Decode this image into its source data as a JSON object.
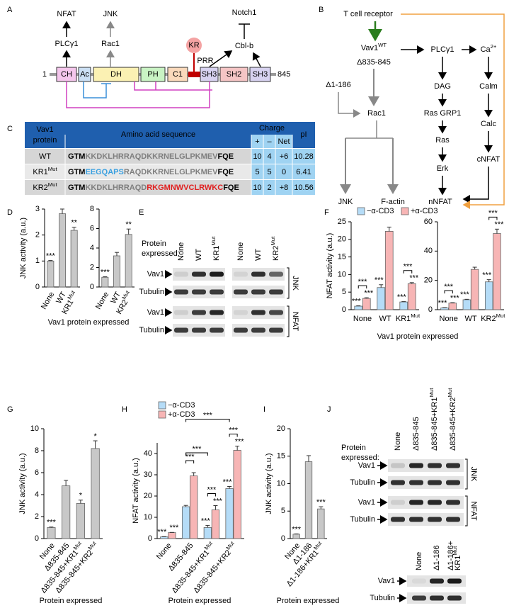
{
  "panel_labels": [
    "A",
    "B",
    "C",
    "D",
    "E",
    "F",
    "G",
    "H",
    "I",
    "J"
  ],
  "panel_a": {
    "nfat": "NFAT",
    "plc": "PLCγ1",
    "jnk": "JNK",
    "rac1": "Rac1",
    "notch1": "Notch1",
    "cblb": "Cbl-b",
    "kr": "KR",
    "prr": "PRR",
    "start": 1,
    "end": 845,
    "domains": [
      "CH",
      "Ac",
      "DH",
      "PH",
      "C1",
      "SH3",
      "SH2",
      "SH3"
    ]
  },
  "panel_b": {
    "tcr": "T cell receptor",
    "vav1": {
      "text": "Vav1",
      "sup": "WT"
    },
    "d835": "Δ835-845",
    "d1": "Δ1-186",
    "rac1": "Rac1",
    "plc": "PLCγ1",
    "ca": {
      "text": "Ca",
      "sup": "2+"
    },
    "dag": "DAG",
    "calm": "Calm",
    "rasgrp": "Ras GRP1",
    "calc": "Calc",
    "ras": "Ras",
    "cnfat": "cNFAT",
    "erk": "Erk",
    "nnfat": "nNFAT",
    "jnk": "JNK",
    "factin": "F-actin"
  },
  "table": {
    "header": {
      "protein": [
        "Vav1",
        "protein"
      ],
      "sequence": "Amino acid sequence",
      "charge": "Charge",
      "plus": "+",
      "minus": "–",
      "net": "Net",
      "pi": "pI"
    },
    "rows": [
      {
        "protein": "WT",
        "sequence": [
          {
            "text": "GTM",
            "color": "#000000"
          },
          {
            "text": "KKDKLHRRAQDKKRNELGLPKMEV",
            "color": "#7f7f7f"
          },
          {
            "text": "FQE",
            "color": "#000000"
          }
        ],
        "plus": 10,
        "minus": 4,
        "net": "+6",
        "pi": 10.28
      },
      {
        "protein": {
          "text": "KR1",
          "sup": "Mut"
        },
        "sequence": [
          {
            "text": "GTM",
            "color": "#000000"
          },
          {
            "text": "EEGQAPS",
            "color": "#3aa0e0"
          },
          {
            "text": "RAQDKKRNELGLPKMEV",
            "color": "#7f7f7f"
          },
          {
            "text": "FQE",
            "color": "#000000"
          }
        ],
        "plus": 5,
        "minus": 5,
        "net": 0,
        "pi": 6.41
      },
      {
        "protein": {
          "text": "KR2",
          "sup": "Mut"
        },
        "sequence": [
          {
            "text": "GTM",
            "color": "#000000"
          },
          {
            "text": "KKDKLHRRAQD",
            "color": "#7f7f7f"
          },
          {
            "text": "RKGMNWVCLRWKC",
            "color": "#e02020"
          },
          {
            "text": "FQE",
            "color": "#000000"
          }
        ],
        "plus": 10,
        "minus": 2,
        "net": "+8",
        "pi": 10.56
      }
    ]
  },
  "blots": {
    "e": {
      "prompt": [
        "Protein",
        "expressed:"
      ],
      "lanes": [
        "None",
        "WT",
        {
          "text": "KR1",
          "sup": "Mut"
        },
        "None",
        "WT",
        {
          "text": "KR2",
          "sup": "Mut"
        }
      ],
      "rows": [
        "Vav1",
        "Tubulin",
        "Vav1",
        "Tubulin"
      ],
      "groups": [
        "JNK",
        "NFAT"
      ]
    },
    "j": {
      "prompt": [
        "Protein",
        "expressed:"
      ],
      "lanes": [
        "None",
        "Δ835-845",
        {
          "text": "Δ835-845+KR1",
          "sup": "Mut"
        },
        {
          "text": "Δ835-845+KR2",
          "sup": "Mut"
        }
      ],
      "rows": [
        "Vav1",
        "Tubulin",
        "Vav1",
        "Tubulin"
      ],
      "groups": [
        "JNK",
        "NFAT"
      ],
      "lanes2": [
        "None",
        "Δ1-186",
        [
          "Δ1-186+",
          {
            "text": "KR1",
            "sup": "Mut"
          }
        ]
      ],
      "rows2": [
        "Vav1",
        "Tubulin"
      ]
    }
  },
  "chart_data": [
    {
      "type": "bar",
      "y_label": "JNK activity (a.u.)",
      "x_label": "Vav1 protein expressed",
      "categories": [
        "None",
        "WT",
        {
          "text": "KR1",
          "sup": "Mut"
        }
      ],
      "values": [
        1.0,
        2.82,
        2.18
      ],
      "errors": [
        0.02,
        0.18,
        0.12
      ],
      "annotations": [
        "***",
        null,
        "**"
      ],
      "color": "#c8c8c8",
      "ylim": [
        0,
        3
      ],
      "yticks": [
        0,
        1,
        2,
        3
      ]
    },
    {
      "type": "bar",
      "categories": [
        "None",
        "WT",
        {
          "text": "KR2",
          "sup": "Mut"
        }
      ],
      "values": [
        1.0,
        3.2,
        5.4
      ],
      "errors": [
        0.05,
        0.35,
        0.55
      ],
      "annotations": [
        "***",
        null,
        "**"
      ],
      "color": "#c8c8c8",
      "ylim": [
        0,
        8
      ],
      "yticks": [
        0,
        2,
        4,
        6,
        8
      ]
    },
    {
      "type": "grouped_bar",
      "y_label": "NFAT activity (a.u.)",
      "x_label": "Vav1 protein expressed",
      "categories": [
        "None",
        "WT",
        {
          "text": "KR1",
          "sup": "Mut"
        }
      ],
      "series": [
        {
          "name": "−α-CD3",
          "color": "#b5dcf7",
          "annotation_color": "#27a9e1",
          "values": [
            1.0,
            6.3,
            2.2
          ],
          "errors": [
            0.1,
            0.8,
            0.1
          ],
          "annotations": [
            "***",
            "***",
            "***"
          ]
        },
        {
          "name": "+α-CD3",
          "color": "#f7b5b5",
          "annotation_color": "#f0696e",
          "values": [
            3.2,
            22.3,
            7.4
          ],
          "errors": [
            0.2,
            1.2,
            0.3
          ],
          "annotations": [
            "***",
            null,
            "***"
          ]
        }
      ],
      "pair_brackets": [
        "***",
        null,
        "***"
      ],
      "ylim": [
        0,
        25
      ],
      "yticks": [
        0,
        5,
        10,
        15,
        20,
        25
      ]
    },
    {
      "type": "grouped_bar",
      "categories": [
        "None",
        "WT",
        {
          "text": "KR2",
          "sup": "Mut"
        }
      ],
      "series": [
        {
          "color": "#b5dcf7",
          "annotation_color": "#27a9e1",
          "values": [
            1.2,
            6.8,
            19
          ],
          "errors": [
            0.2,
            0.3,
            1.5
          ],
          "annotations": [
            "***",
            "***",
            "***"
          ]
        },
        {
          "color": "#f7b5b5",
          "annotation_color": "#f0696e",
          "values": [
            4.5,
            27.5,
            52
          ],
          "errors": [
            0.3,
            1.5,
            3
          ],
          "annotations": [
            "***",
            null,
            "***"
          ]
        }
      ],
      "pair_brackets": [
        "***",
        null,
        "***"
      ],
      "ylim": [
        0,
        60
      ],
      "yticks": [
        0,
        20,
        40,
        60
      ]
    },
    {
      "type": "bar",
      "y_label": "JNK activity (a.u.)",
      "x_label": "Protein expressed",
      "categories": [
        "None",
        "Δ835-845",
        {
          "text": "Δ835-845+KR1",
          "sup": "Mut"
        },
        {
          "text": "Δ835-845+KR2",
          "sup": "Mut"
        }
      ],
      "values": [
        1.0,
        4.8,
        3.2,
        8.2
      ],
      "errors": [
        0.05,
        0.5,
        0.3,
        0.7
      ],
      "annotations": [
        "***",
        null,
        "*",
        "*"
      ],
      "color": "#c8c8c8",
      "ylim": [
        0,
        10
      ],
      "yticks": [
        0,
        2,
        4,
        6,
        8,
        10
      ]
    },
    {
      "type": "grouped_bar",
      "y_label": "NFAT activity (a.u.)",
      "x_label": "Protein expressed",
      "categories": [
        "None",
        "Δ835-845",
        {
          "text": "Δ835-845+KR1",
          "sup": "Mut"
        },
        {
          "text": "Δ835-845+KR2",
          "sup": "Mut"
        }
      ],
      "series": [
        {
          "name": "−α-CD3",
          "color": "#b5dcf7",
          "annotation_color": "#27a9e1",
          "values": [
            0.8,
            15,
            5.2,
            23.5
          ],
          "errors": [
            0.1,
            0.6,
            1.0,
            1.0
          ],
          "annotations": [
            "***",
            null,
            "***",
            "***"
          ]
        },
        {
          "name": "+α-CD3",
          "color": "#f7b5b5",
          "annotation_color": "#f0696e",
          "values": [
            2.8,
            29.5,
            13.5,
            41.5
          ],
          "errors": [
            0.1,
            1.5,
            2.0,
            2.0
          ],
          "annotations": [
            "***",
            null,
            "***",
            "***"
          ]
        }
      ],
      "pair_brackets": [
        null,
        "***",
        "***",
        "***"
      ],
      "group_brackets": [
        {
          "categories": [
            1,
            2
          ],
          "label": "***"
        },
        {
          "categories": [
            1,
            3
          ],
          "label": "***"
        }
      ],
      "ylim": [
        0,
        45
      ],
      "yticks": [
        0,
        10,
        20,
        30,
        40
      ]
    },
    {
      "type": "bar",
      "y_label": "JNK activity (a.u.)",
      "x_label": "Protein expressed",
      "categories": [
        "None",
        "Δ1-186",
        {
          "text": "Δ1-186+KR1",
          "sup": "Mut"
        }
      ],
      "values": [
        0.8,
        14,
        5.4
      ],
      "errors": [
        0.05,
        1.1,
        0.4
      ],
      "annotations": [
        "***",
        null,
        "***"
      ],
      "color": "#c8c8c8",
      "ylim": [
        0,
        20
      ],
      "yticks": [
        0,
        5,
        10,
        15,
        20
      ]
    }
  ]
}
